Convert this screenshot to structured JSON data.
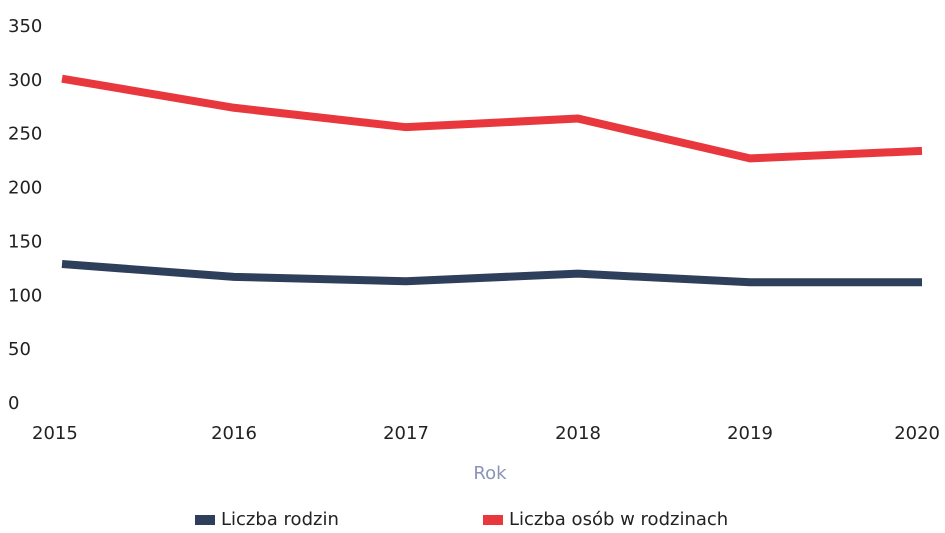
{
  "chart_data": {
    "type": "line",
    "x_label": "Rok",
    "categories": [
      "2015",
      "2016",
      "2017",
      "2018",
      "2019",
      "2020"
    ],
    "series": [
      {
        "name": "Liczba rodzin",
        "color": "#2e3f5c",
        "values": [
          130,
          118,
          114,
          121,
          113,
          113
        ]
      },
      {
        "name": "Liczba osób w rodzinach",
        "color": "#e8383d",
        "values": [
          302,
          275,
          257,
          265,
          228,
          235
        ]
      }
    ],
    "ylim": [
      0,
      350
    ],
    "yticks": [
      0,
      50,
      100,
      150,
      200,
      250,
      300,
      350
    ],
    "grid": false
  }
}
